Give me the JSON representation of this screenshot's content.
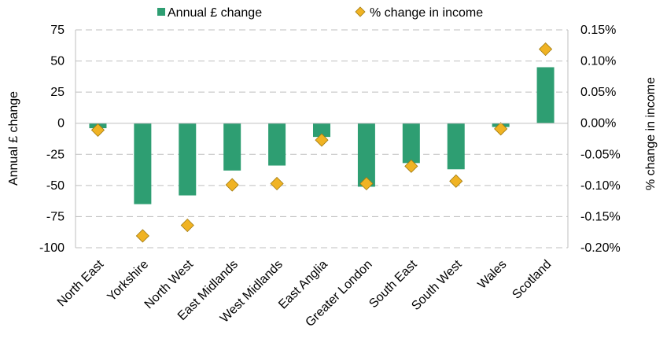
{
  "chart_data": {
    "type": "bar",
    "categories": [
      "North East",
      "Yorkshire",
      "North West",
      "East Midlands",
      "West Midlands",
      "East Anglia",
      "Greater London",
      "South East",
      "South West",
      "Wales",
      "Scotland"
    ],
    "series": [
      {
        "name": "Annual £ change",
        "type": "bar",
        "axis": "left",
        "color": "#2e9e72",
        "values": [
          -4,
          -65,
          -58,
          -38,
          -34,
          -11,
          -51,
          -32,
          -37,
          -3,
          45
        ]
      },
      {
        "name": "% change in income",
        "type": "scatter",
        "axis": "right",
        "color": "#f0b323",
        "marker": "diamond",
        "values": [
          -0.011,
          -0.181,
          -0.164,
          -0.099,
          -0.097,
          -0.027,
          -0.097,
          -0.069,
          -0.093,
          -0.009,
          0.119
        ]
      }
    ],
    "ylabel": "Annual £ change",
    "y2label": "% change in income",
    "ylim": [
      -100,
      75
    ],
    "y2lim": [
      -0.2,
      0.15
    ],
    "yticks": [
      "75",
      "50",
      "25",
      "0",
      "-25",
      "-50",
      "-75",
      "-100"
    ],
    "y2ticks": [
      "0.15%",
      "0.10%",
      "0.05%",
      "0.00%",
      "-0.05%",
      "-0.10%",
      "-0.15%",
      "-0.20%"
    ],
    "grid": true,
    "legend": "top-center"
  }
}
